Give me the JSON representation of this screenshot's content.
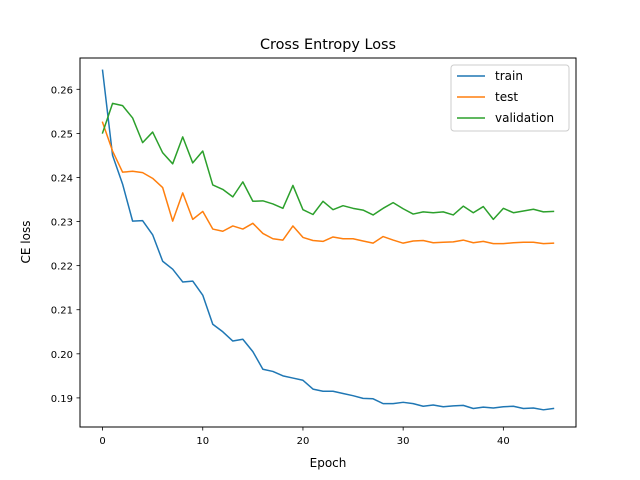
{
  "chart_data": {
    "type": "line",
    "title": "Cross Entropy Loss",
    "xlabel": "Epoch",
    "ylabel": "CE loss",
    "xlim": [
      -2.25,
      47.25
    ],
    "ylim": [
      0.1834,
      0.2671
    ],
    "xticks": [
      0,
      10,
      20,
      30,
      40
    ],
    "yticks": [
      0.19,
      0.2,
      0.21,
      0.22,
      0.23,
      0.24,
      0.25,
      0.26
    ],
    "ytick_labels": [
      "0.19",
      "0.20",
      "0.21",
      "0.22",
      "0.23",
      "0.24",
      "0.25",
      "0.26"
    ],
    "grid": false,
    "legend_position": "top-right",
    "x": [
      0,
      1,
      2,
      3,
      4,
      5,
      6,
      7,
      8,
      9,
      10,
      11,
      12,
      13,
      14,
      15,
      16,
      17,
      18,
      19,
      20,
      21,
      22,
      23,
      24,
      25,
      26,
      27,
      28,
      29,
      30,
      31,
      32,
      33,
      34,
      35,
      36,
      37,
      38,
      39,
      40,
      41,
      42,
      43,
      44,
      45
    ],
    "series": [
      {
        "name": "train",
        "color": "#1f77b4",
        "values": [
          0.2643,
          0.245,
          0.2385,
          0.2301,
          0.2302,
          0.227,
          0.221,
          0.2192,
          0.2163,
          0.2165,
          0.2133,
          0.2067,
          0.205,
          0.2029,
          0.2033,
          0.2005,
          0.1965,
          0.196,
          0.195,
          0.1945,
          0.194,
          0.192,
          0.1915,
          0.1915,
          0.191,
          0.1905,
          0.1899,
          0.1898,
          0.1887,
          0.1887,
          0.189,
          0.1887,
          0.1881,
          0.1884,
          0.188,
          0.1882,
          0.1883,
          0.1876,
          0.1879,
          0.1877,
          0.188,
          0.1881,
          0.1876,
          0.1877,
          0.1873,
          0.1876
        ]
      },
      {
        "name": "test",
        "color": "#ff7f0e",
        "values": [
          0.2525,
          0.246,
          0.2412,
          0.2414,
          0.2411,
          0.2398,
          0.2377,
          0.2301,
          0.2365,
          0.2305,
          0.2323,
          0.2283,
          0.2278,
          0.229,
          0.2283,
          0.2296,
          0.2273,
          0.2261,
          0.2258,
          0.229,
          0.2264,
          0.2257,
          0.2255,
          0.2265,
          0.2261,
          0.2261,
          0.2256,
          0.2251,
          0.2266,
          0.2258,
          0.2251,
          0.2256,
          0.2257,
          0.2252,
          0.2253,
          0.2254,
          0.2258,
          0.2252,
          0.2255,
          0.225,
          0.225,
          0.2252,
          0.2253,
          0.2253,
          0.225,
          0.2251
        ]
      },
      {
        "name": "validation",
        "color": "#2ca02c",
        "values": [
          0.2501,
          0.2568,
          0.2563,
          0.2535,
          0.2479,
          0.2503,
          0.2456,
          0.2431,
          0.2492,
          0.2433,
          0.246,
          0.2383,
          0.2373,
          0.2356,
          0.239,
          0.2346,
          0.2347,
          0.234,
          0.233,
          0.2382,
          0.2327,
          0.2316,
          0.2346,
          0.2327,
          0.2336,
          0.233,
          0.2326,
          0.2315,
          0.233,
          0.2343,
          0.2329,
          0.2317,
          0.2322,
          0.232,
          0.2322,
          0.2315,
          0.2335,
          0.232,
          0.2334,
          0.2305,
          0.233,
          0.232,
          0.2324,
          0.2328,
          0.2322,
          0.2323
        ]
      }
    ]
  }
}
